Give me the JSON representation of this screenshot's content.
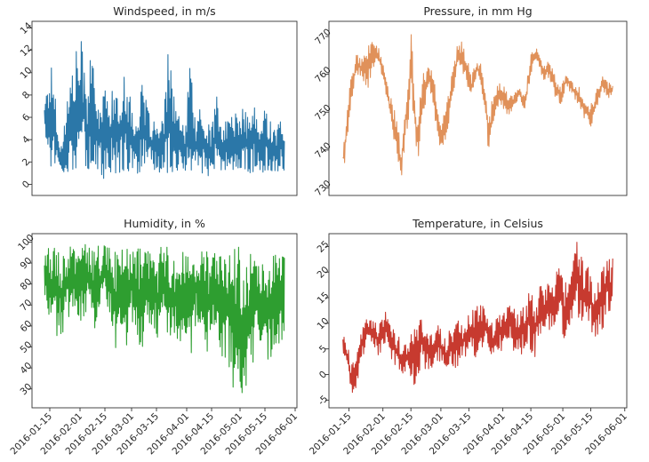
{
  "chart_data": [
    {
      "type": "line",
      "title": "Windspeed, in m/s",
      "xlabel": "",
      "ylabel": "",
      "color": "#2b77a8",
      "ylim": [
        -1,
        14.6
      ],
      "yticks": [
        0,
        2,
        4,
        6,
        8,
        10,
        12,
        14
      ],
      "xlim": [
        "2016-01-05",
        "2016-06-02"
      ],
      "xticks": [],
      "grid": false,
      "series": [
        {
          "x": [
            "2016-01-12",
            "2016-01-14",
            "2016-01-16",
            "2016-01-17",
            "2016-01-19",
            "2016-01-21",
            "2016-01-24",
            "2016-01-27",
            "2016-01-30",
            "2016-02-02",
            "2016-02-05",
            "2016-02-07",
            "2016-02-09",
            "2016-02-11",
            "2016-02-14",
            "2016-02-17",
            "2016-02-20",
            "2016-02-23",
            "2016-02-26",
            "2016-03-01",
            "2016-03-04",
            "2016-03-07",
            "2016-03-10",
            "2016-03-13",
            "2016-03-16",
            "2016-03-19",
            "2016-03-22",
            "2016-03-25",
            "2016-03-28",
            "2016-03-31",
            "2016-04-03",
            "2016-04-06",
            "2016-04-09",
            "2016-04-12",
            "2016-04-15",
            "2016-04-18",
            "2016-04-21",
            "2016-04-24",
            "2016-04-27",
            "2016-04-30",
            "2016-05-03",
            "2016-05-06",
            "2016-05-09",
            "2016-05-12",
            "2016-05-15",
            "2016-05-18",
            "2016-05-21",
            "2016-05-24",
            "2016-05-26"
          ],
          "min": [
            4,
            3,
            1,
            2,
            1,
            1,
            1,
            1,
            1,
            2,
            1,
            1,
            2,
            1,
            0,
            1,
            1,
            1,
            1,
            1,
            1,
            1,
            1,
            1,
            1,
            1,
            1,
            1,
            1,
            1,
            1,
            1,
            1,
            1,
            0,
            1,
            1,
            1,
            1,
            1,
            1,
            1,
            1,
            1,
            1,
            1,
            1,
            1,
            1
          ],
          "max": [
            8,
            9,
            11,
            10,
            7,
            3,
            7,
            10,
            12,
            13,
            8,
            14,
            9,
            7,
            9,
            8,
            9,
            7,
            11,
            7,
            6,
            9,
            7,
            6,
            5,
            6,
            13,
            8,
            6,
            5,
            11,
            6,
            7,
            5,
            6,
            8,
            5,
            6,
            7,
            6,
            7,
            6,
            7,
            5,
            7,
            6,
            5,
            6,
            4
          ]
        }
      ]
    },
    {
      "type": "line",
      "title": "Pressure, in mm Hg",
      "xlabel": "",
      "ylabel": "",
      "color": "#e0915a",
      "ylim": [
        728,
        774
      ],
      "yticks": [
        730,
        740,
        750,
        760,
        770
      ],
      "xlim": [
        "2016-01-05",
        "2016-06-02"
      ],
      "xticks": [],
      "grid": false,
      "series": [
        {
          "x": [
            "2016-01-12",
            "2016-01-14",
            "2016-01-16",
            "2016-01-19",
            "2016-01-22",
            "2016-01-25",
            "2016-01-28",
            "2016-01-31",
            "2016-02-02",
            "2016-02-04",
            "2016-02-06",
            "2016-02-08",
            "2016-02-10",
            "2016-02-12",
            "2016-02-15",
            "2016-02-18",
            "2016-02-21",
            "2016-02-24",
            "2016-02-27",
            "2016-03-01",
            "2016-03-04",
            "2016-03-07",
            "2016-03-10",
            "2016-03-13",
            "2016-03-16",
            "2016-03-19",
            "2016-03-22",
            "2016-03-25",
            "2016-03-28",
            "2016-03-31",
            "2016-04-03",
            "2016-04-06",
            "2016-04-09",
            "2016-04-12",
            "2016-04-15",
            "2016-04-18",
            "2016-04-21",
            "2016-04-24",
            "2016-04-27",
            "2016-04-30",
            "2016-05-03",
            "2016-05-06",
            "2016-05-09",
            "2016-05-12",
            "2016-05-15",
            "2016-05-18",
            "2016-05-21",
            "2016-05-24",
            "2016-05-26"
          ],
          "min": [
            734,
            740,
            752,
            760,
            758,
            756,
            763,
            760,
            756,
            750,
            744,
            738,
            731,
            741,
            752,
            735,
            748,
            758,
            747,
            739,
            744,
            754,
            762,
            758,
            752,
            760,
            754,
            738,
            749,
            752,
            749,
            750,
            754,
            750,
            760,
            764,
            758,
            759,
            754,
            752,
            757,
            754,
            752,
            748,
            745,
            751,
            756,
            753,
            755
          ],
          "max": [
            740,
            752,
            759,
            766,
            764,
            768,
            770,
            766,
            760,
            756,
            752,
            748,
            742,
            750,
            772,
            751,
            760,
            764,
            758,
            746,
            754,
            762,
            770,
            767,
            760,
            764,
            762,
            750,
            756,
            758,
            756,
            754,
            757,
            754,
            766,
            767,
            763,
            764,
            760,
            757,
            761,
            758,
            757,
            754,
            752,
            756,
            760,
            758,
            757
          ]
        }
      ]
    },
    {
      "type": "line",
      "title": "Humidity, in %",
      "xlabel": "",
      "ylabel": "",
      "color": "#2e9e30",
      "ylim": [
        21,
        104
      ],
      "yticks": [
        30,
        40,
        50,
        60,
        70,
        80,
        90,
        100
      ],
      "xlim": [
        "2016-01-05",
        "2016-06-02"
      ],
      "xticks": [
        "2016-01-15",
        "2016-02-01",
        "2016-02-15",
        "2016-03-01",
        "2016-03-15",
        "2016-04-01",
        "2016-04-15",
        "2016-05-01",
        "2016-05-15",
        "2016-06-01"
      ],
      "grid": false,
      "series": [
        {
          "x": [
            "2016-01-12",
            "2016-01-14",
            "2016-01-16",
            "2016-01-19",
            "2016-01-22",
            "2016-01-25",
            "2016-01-28",
            "2016-01-31",
            "2016-02-03",
            "2016-02-06",
            "2016-02-09",
            "2016-02-12",
            "2016-02-15",
            "2016-02-18",
            "2016-02-21",
            "2016-02-24",
            "2016-02-27",
            "2016-03-01",
            "2016-03-04",
            "2016-03-07",
            "2016-03-10",
            "2016-03-13",
            "2016-03-16",
            "2016-03-19",
            "2016-03-22",
            "2016-03-25",
            "2016-03-28",
            "2016-03-31",
            "2016-04-03",
            "2016-04-06",
            "2016-04-09",
            "2016-04-12",
            "2016-04-15",
            "2016-04-18",
            "2016-04-21",
            "2016-04-24",
            "2016-04-27",
            "2016-04-30",
            "2016-05-02",
            "2016-05-05",
            "2016-05-08",
            "2016-05-11",
            "2016-05-14",
            "2016-05-17",
            "2016-05-20",
            "2016-05-23",
            "2016-05-26"
          ],
          "min": [
            75,
            64,
            60,
            55,
            52,
            62,
            68,
            65,
            60,
            70,
            58,
            62,
            72,
            66,
            48,
            60,
            50,
            64,
            52,
            46,
            55,
            62,
            48,
            60,
            55,
            50,
            52,
            57,
            43,
            58,
            52,
            47,
            48,
            60,
            38,
            45,
            28,
            40,
            24,
            32,
            42,
            48,
            50,
            38,
            45,
            50,
            55
          ],
          "max": [
            95,
            98,
            100,
            99,
            98,
            100,
            97,
            99,
            100,
            98,
            96,
            100,
            98,
            99,
            96,
            100,
            97,
            95,
            99,
            97,
            98,
            94,
            96,
            100,
            98,
            96,
            98,
            95,
            97,
            99,
            96,
            98,
            94,
            97,
            99,
            95,
            96,
            100,
            92,
            97,
            95,
            98,
            94,
            98,
            100,
            97,
            94
          ]
        }
      ]
    },
    {
      "type": "line",
      "title": "Temperature, in Celsius",
      "xlabel": "",
      "ylabel": "",
      "color": "#c73a2f",
      "ylim": [
        -6.5,
        27.5
      ],
      "yticks": [
        -5,
        0,
        5,
        10,
        15,
        20,
        25
      ],
      "xlim": [
        "2016-01-05",
        "2016-06-02"
      ],
      "xticks": [
        "2016-01-15",
        "2016-02-01",
        "2016-02-15",
        "2016-03-01",
        "2016-03-15",
        "2016-04-01",
        "2016-04-15",
        "2016-05-01",
        "2016-05-15",
        "2016-06-01"
      ],
      "grid": false,
      "series": [
        {
          "x": [
            "2016-01-12",
            "2016-01-14",
            "2016-01-16",
            "2016-01-18",
            "2016-01-21",
            "2016-01-24",
            "2016-01-27",
            "2016-01-30",
            "2016-02-02",
            "2016-02-05",
            "2016-02-08",
            "2016-02-11",
            "2016-02-14",
            "2016-02-17",
            "2016-02-20",
            "2016-02-23",
            "2016-02-26",
            "2016-02-29",
            "2016-03-03",
            "2016-03-06",
            "2016-03-09",
            "2016-03-12",
            "2016-03-15",
            "2016-03-18",
            "2016-03-21",
            "2016-03-24",
            "2016-03-27",
            "2016-03-30",
            "2016-04-02",
            "2016-04-05",
            "2016-04-08",
            "2016-04-11",
            "2016-04-14",
            "2016-04-17",
            "2016-04-20",
            "2016-04-23",
            "2016-04-26",
            "2016-04-29",
            "2016-05-02",
            "2016-05-05",
            "2016-05-08",
            "2016-05-11",
            "2016-05-14",
            "2016-05-17",
            "2016-05-20",
            "2016-05-23",
            "2016-05-26"
          ],
          "min": [
            4,
            1,
            -4,
            -4,
            2,
            5,
            6,
            3,
            6,
            2,
            1,
            -1,
            1,
            -4,
            2,
            0,
            1,
            3,
            0,
            2,
            1,
            3,
            4,
            3,
            5,
            6,
            3,
            5,
            4,
            6,
            3,
            4,
            5,
            3,
            6,
            8,
            9,
            12,
            6,
            10,
            12,
            9,
            10,
            6,
            8,
            11,
            12
          ],
          "max": [
            8,
            6,
            3,
            2,
            9,
            12,
            11,
            10,
            13,
            10,
            8,
            6,
            7,
            9,
            12,
            10,
            8,
            10,
            7,
            9,
            11,
            10,
            12,
            13,
            14,
            12,
            10,
            12,
            13,
            15,
            12,
            14,
            16,
            15,
            18,
            19,
            17,
            22,
            18,
            24,
            26,
            22,
            21,
            18,
            20,
            23,
            23
          ]
        }
      ]
    }
  ]
}
